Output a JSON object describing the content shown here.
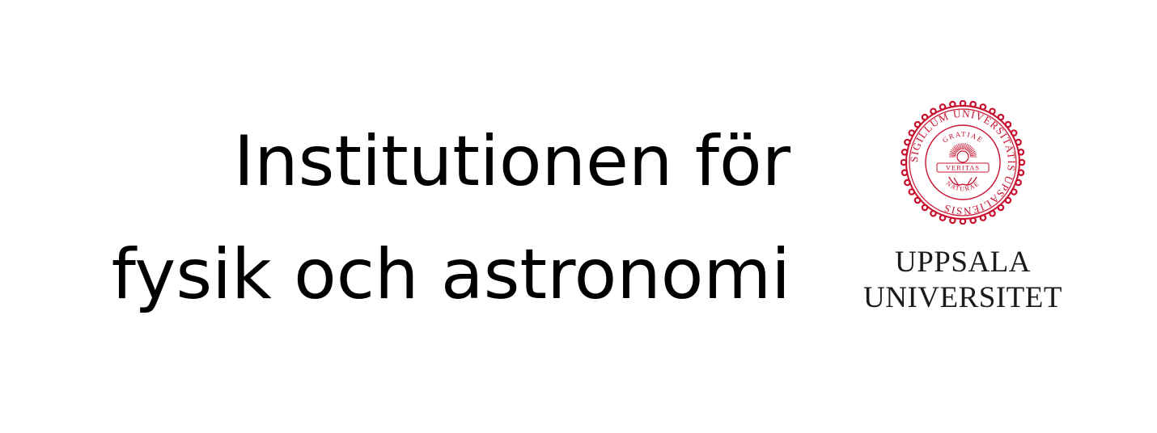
{
  "department": {
    "line1": "Institutionen för",
    "line2": "fysik och astronomi"
  },
  "logo": {
    "seal_icon": "uppsala-university-seal",
    "seal_color": "#c8102e",
    "seal_outer_text": "SIGILLUM UNIVERSITATIS UPSALIENSIS",
    "seal_upper_text": "GRATIAE",
    "seal_banner_text": "VERITAS",
    "seal_lower_text": "NATURAE",
    "wordmark_line1": "UPPSALA",
    "wordmark_line2": "UNIVERSITET"
  }
}
